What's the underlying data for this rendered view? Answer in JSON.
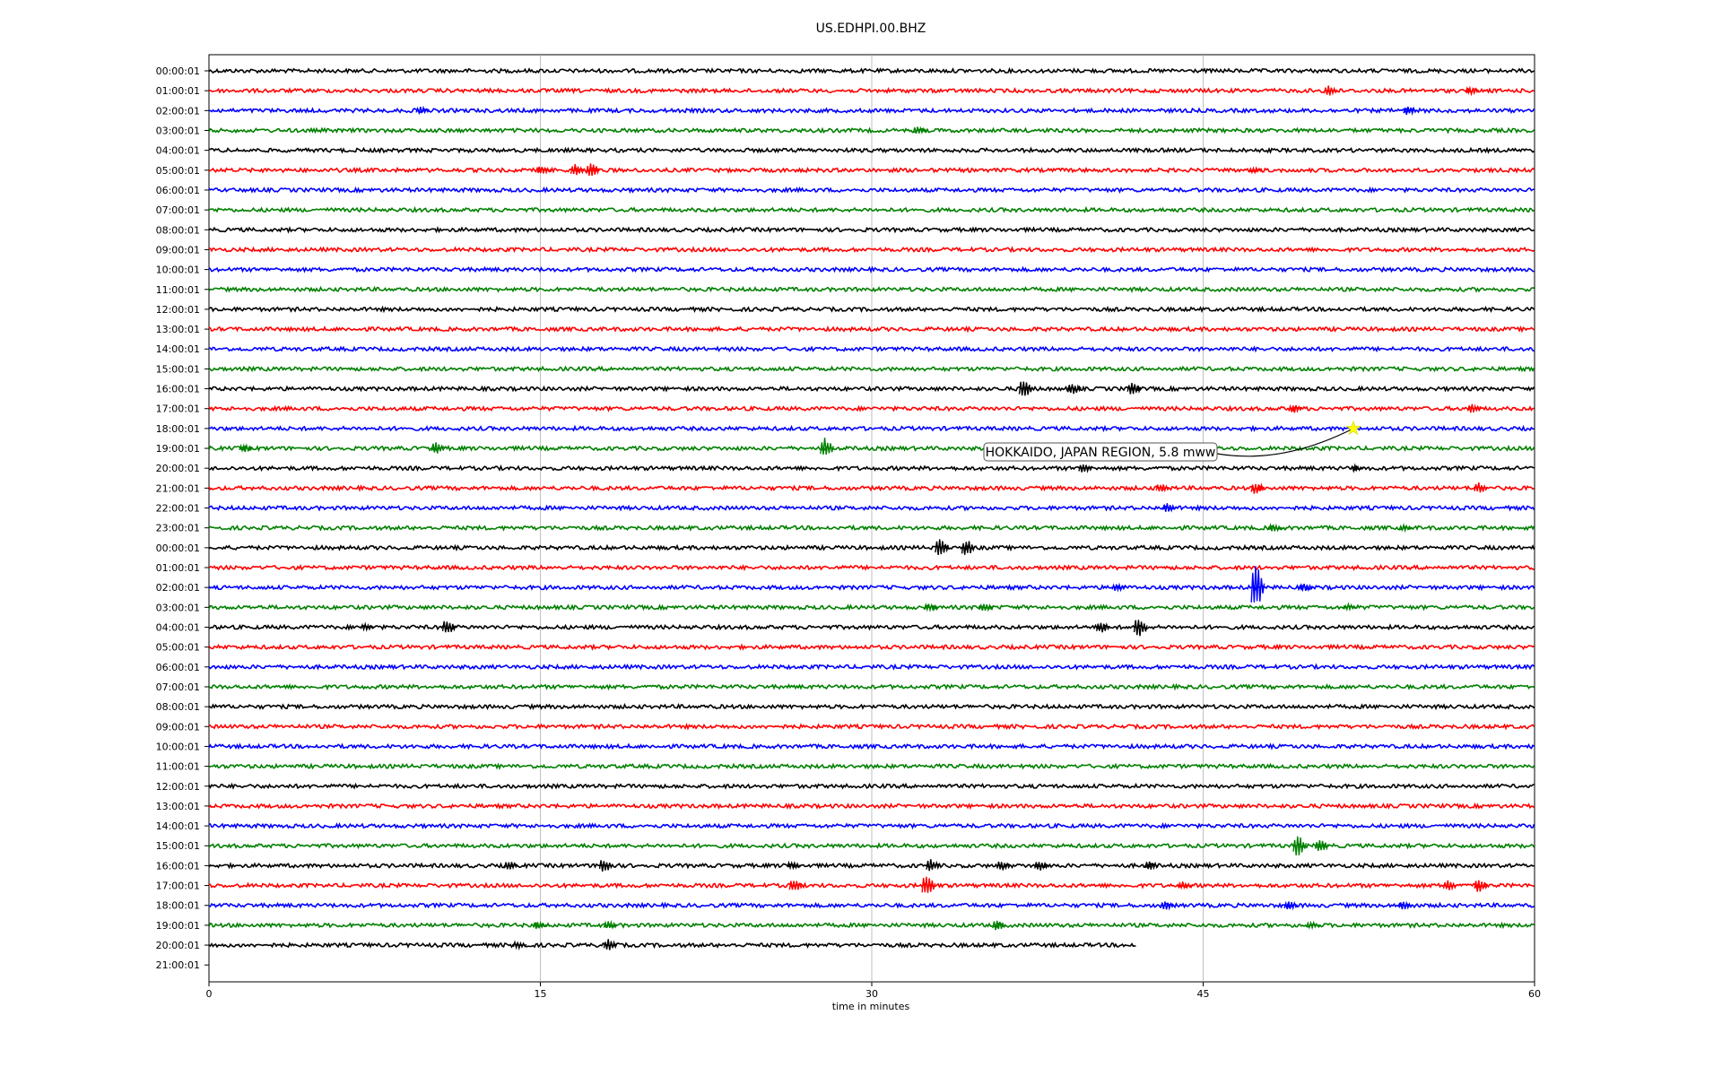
{
  "chart_data": {
    "type": "line",
    "title": "US.EDHPI.00.BHZ",
    "xlabel": "time in minutes",
    "ylabel": "",
    "xlim": [
      0,
      60
    ],
    "xticks": [
      0,
      15,
      30,
      45,
      60
    ],
    "grid": "vertical lines at x ticks",
    "trace_colors": [
      "#000000",
      "#ff0000",
      "#0000ff",
      "#008000"
    ],
    "hour_labels": [
      "00:00:01",
      "01:00:01",
      "02:00:01",
      "03:00:01",
      "04:00:01",
      "05:00:01",
      "06:00:01",
      "07:00:01",
      "08:00:01",
      "09:00:01",
      "10:00:01",
      "11:00:01",
      "12:00:01",
      "13:00:01",
      "14:00:01",
      "15:00:01",
      "16:00:01",
      "17:00:01",
      "18:00:01",
      "19:00:01",
      "20:00:01",
      "21:00:01",
      "22:00:01",
      "23:00:01",
      "00:00:01",
      "01:00:01",
      "02:00:01",
      "03:00:01",
      "04:00:01",
      "05:00:01",
      "06:00:01",
      "07:00:01",
      "08:00:01",
      "09:00:01",
      "10:00:01",
      "11:00:01",
      "12:00:01",
      "13:00:01",
      "14:00:01",
      "15:00:01",
      "16:00:01",
      "17:00:01",
      "18:00:01",
      "19:00:01",
      "20:00:01",
      "21:00:01"
    ],
    "last_trace_end_minute": 42,
    "events": [
      {
        "row": 1,
        "minute": 50.6,
        "amp": 0.7
      },
      {
        "row": 1,
        "minute": 57,
        "amp": 0.5
      },
      {
        "row": 2,
        "minute": 9.5,
        "amp": 0.5
      },
      {
        "row": 2,
        "minute": 54.2,
        "amp": 0.6
      },
      {
        "row": 3,
        "minute": 32,
        "amp": 0.5
      },
      {
        "row": 5,
        "minute": 15,
        "amp": 0.6
      },
      {
        "row": 5,
        "minute": 16.5,
        "amp": 0.8
      },
      {
        "row": 5,
        "minute": 17.2,
        "amp": 1.0
      },
      {
        "row": 5,
        "minute": 47.2,
        "amp": 0.4
      },
      {
        "row": 16,
        "minute": 36.8,
        "amp": 1.2
      },
      {
        "row": 16,
        "minute": 39,
        "amp": 0.8
      },
      {
        "row": 16,
        "minute": 41.7,
        "amp": 0.9
      },
      {
        "row": 17,
        "minute": 49,
        "amp": 0.6
      },
      {
        "row": 17,
        "minute": 57.1,
        "amp": 0.6
      },
      {
        "row": 19,
        "minute": 1.5,
        "amp": 0.5
      },
      {
        "row": 19,
        "minute": 10.2,
        "amp": 0.8
      },
      {
        "row": 19,
        "minute": 27.8,
        "amp": 1.4
      },
      {
        "row": 20,
        "minute": 39.5,
        "amp": 0.6
      },
      {
        "row": 20,
        "minute": 51.8,
        "amp": 0.4
      },
      {
        "row": 21,
        "minute": 43,
        "amp": 0.6
      },
      {
        "row": 21,
        "minute": 47.3,
        "amp": 0.8
      },
      {
        "row": 21,
        "minute": 57.4,
        "amp": 0.7
      },
      {
        "row": 22,
        "minute": 43.3,
        "amp": 0.6
      },
      {
        "row": 23,
        "minute": 48.1,
        "amp": 0.5
      },
      {
        "row": 23,
        "minute": 54,
        "amp": 0.4
      },
      {
        "row": 24,
        "minute": 33,
        "amp": 1.2
      },
      {
        "row": 24,
        "minute": 34.2,
        "amp": 1.2
      },
      {
        "row": 26,
        "minute": 41,
        "amp": 0.5
      },
      {
        "row": 26,
        "minute": 47.3,
        "amp": 3.2
      },
      {
        "row": 26,
        "minute": 49.5,
        "amp": 0.5
      },
      {
        "row": 27,
        "minute": 32.5,
        "amp": 0.5
      },
      {
        "row": 27,
        "minute": 35,
        "amp": 0.5
      },
      {
        "row": 27,
        "minute": 51.5,
        "amp": 0.4
      },
      {
        "row": 28,
        "minute": 7,
        "amp": 0.4
      },
      {
        "row": 28,
        "minute": 10.7,
        "amp": 1.0
      },
      {
        "row": 28,
        "minute": 40.3,
        "amp": 0.8
      },
      {
        "row": 28,
        "minute": 42,
        "amp": 1.5
      },
      {
        "row": 39,
        "minute": 49.2,
        "amp": 1.4
      },
      {
        "row": 39,
        "minute": 50.2,
        "amp": 0.9
      },
      {
        "row": 40,
        "minute": 13.5,
        "amp": 0.6
      },
      {
        "row": 40,
        "minute": 17.8,
        "amp": 0.9
      },
      {
        "row": 40,
        "minute": 26.3,
        "amp": 0.5
      },
      {
        "row": 40,
        "minute": 32.6,
        "amp": 0.8
      },
      {
        "row": 40,
        "minute": 35.8,
        "amp": 0.7
      },
      {
        "row": 40,
        "minute": 37.5,
        "amp": 0.7
      },
      {
        "row": 40,
        "minute": 42.5,
        "amp": 0.6
      },
      {
        "row": 41,
        "minute": 26.4,
        "amp": 0.9
      },
      {
        "row": 41,
        "minute": 32.4,
        "amp": 1.4
      },
      {
        "row": 41,
        "minute": 44,
        "amp": 0.5
      },
      {
        "row": 41,
        "minute": 56,
        "amp": 0.7
      },
      {
        "row": 41,
        "minute": 57.4,
        "amp": 0.9
      },
      {
        "row": 42,
        "minute": 43.2,
        "amp": 0.6
      },
      {
        "row": 42,
        "minute": 48.8,
        "amp": 0.6
      },
      {
        "row": 42,
        "minute": 54,
        "amp": 0.6
      },
      {
        "row": 43,
        "minute": 14.8,
        "amp": 0.5
      },
      {
        "row": 43,
        "minute": 18,
        "amp": 0.6
      },
      {
        "row": 43,
        "minute": 35.6,
        "amp": 0.7
      },
      {
        "row": 43,
        "minute": 49.8,
        "amp": 0.5
      },
      {
        "row": 44,
        "minute": 13.9,
        "amp": 0.5
      },
      {
        "row": 44,
        "minute": 18,
        "amp": 0.8
      }
    ],
    "annotation": {
      "text": "HOKKAIDO, JAPAN REGION, 5.8 mww",
      "marker_row": 18,
      "marker_minute": 51.8,
      "marker_color": "#ffff00"
    }
  }
}
